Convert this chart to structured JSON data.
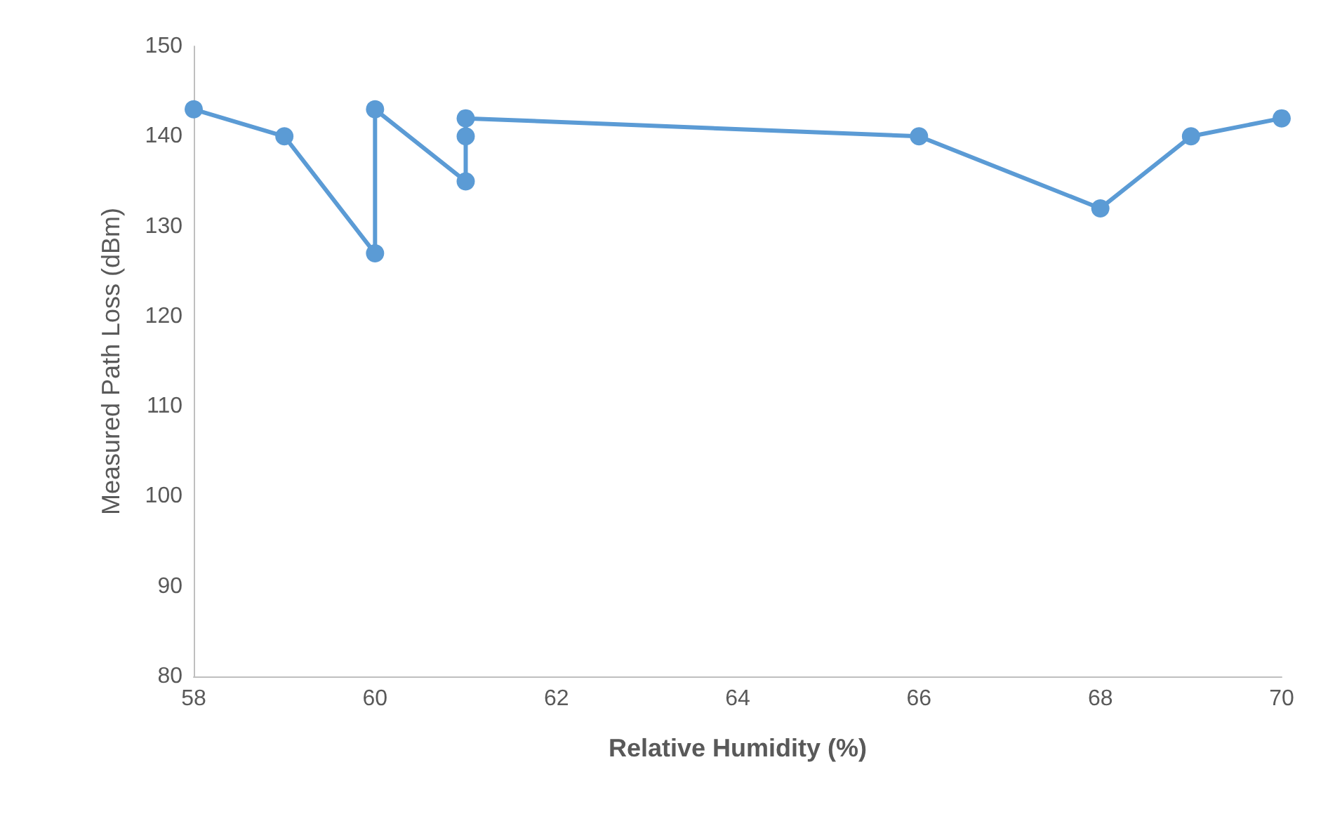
{
  "chart_data": {
    "type": "line",
    "xlabel": "Relative Humidity (%)",
    "ylabel": "Measured Path Loss (dBm)",
    "x": [
      58,
      59,
      60,
      60,
      61,
      61,
      61,
      66,
      68,
      69,
      70
    ],
    "series": [
      {
        "color": "#5b9bd5",
        "values": [
          143,
          140,
          127,
          143,
          135,
          140,
          142,
          140,
          132,
          140,
          142
        ]
      }
    ],
    "xlim": [
      58,
      70
    ],
    "xticks": [
      58,
      60,
      62,
      64,
      66,
      68,
      70
    ],
    "ylim": [
      80,
      150
    ],
    "yticks": [
      80,
      90,
      100,
      110,
      120,
      130,
      140,
      150
    ],
    "grid": false,
    "marker": "circle",
    "line_style": "solid"
  }
}
